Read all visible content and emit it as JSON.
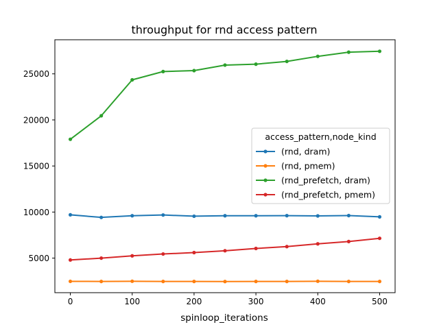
{
  "chart_data": {
    "type": "line",
    "title": "throughput for rnd access pattern",
    "xlabel": "spinloop_iterations",
    "ylabel": "",
    "x": [
      0,
      50,
      100,
      150,
      200,
      250,
      300,
      350,
      400,
      450,
      500
    ],
    "xlim": [
      -25,
      525
    ],
    "ylim": [
      1250,
      28700
    ],
    "xticks": [
      0,
      100,
      200,
      300,
      400,
      500
    ],
    "yticks": [
      5000,
      10000,
      15000,
      20000,
      25000
    ],
    "grid": false,
    "legend": {
      "title": "access_pattern,node_kind",
      "placement": "center-right"
    },
    "series": [
      {
        "name": "(rnd, dram)",
        "color": "#1f77b4",
        "values": [
          9700,
          9420,
          9600,
          9680,
          9550,
          9600,
          9600,
          9610,
          9580,
          9620,
          9480
        ]
      },
      {
        "name": "(rnd, pmem)",
        "color": "#ff7f0e",
        "values": [
          2480,
          2470,
          2490,
          2470,
          2470,
          2460,
          2470,
          2470,
          2490,
          2470,
          2470
        ]
      },
      {
        "name": "(rnd_prefetch, dram)",
        "color": "#2ca02c",
        "values": [
          17900,
          20450,
          24350,
          25250,
          25350,
          25950,
          26050,
          26350,
          26900,
          27350,
          27450
        ]
      },
      {
        "name": "(rnd_prefetch, pmem)",
        "color": "#d62728",
        "values": [
          4800,
          5000,
          5250,
          5450,
          5600,
          5800,
          6050,
          6250,
          6550,
          6800,
          7150
        ]
      }
    ]
  }
}
